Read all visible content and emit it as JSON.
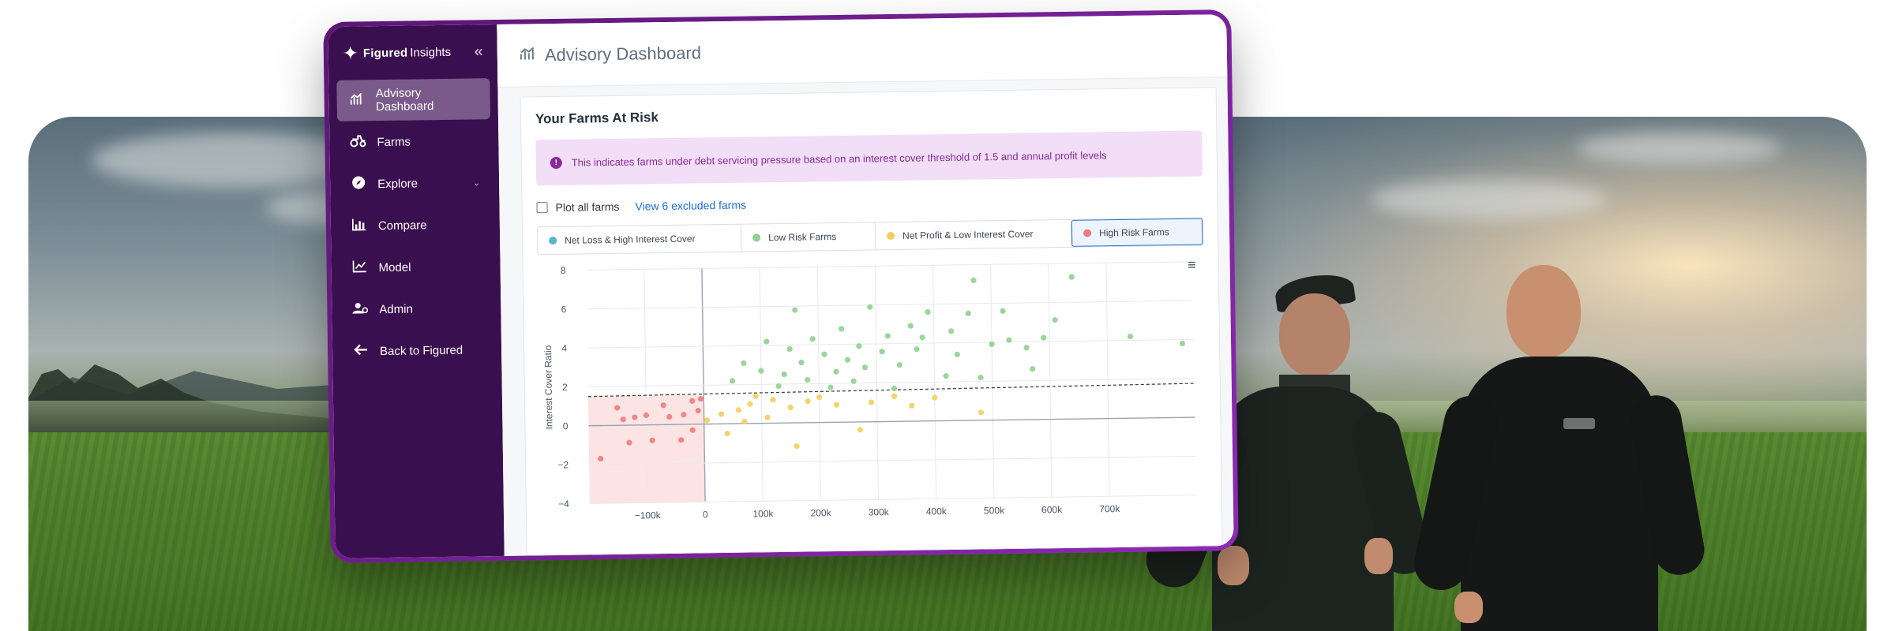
{
  "app": {
    "brand_name": "Figured",
    "brand_sub": "Insights",
    "colors": {
      "sidebar": "#3a0f4f",
      "accent": "#8d2ab3",
      "link": "#1f6fe0"
    }
  },
  "sidebar": {
    "collapse_icon": "double-chevron-left-icon",
    "items": [
      {
        "label": "Advisory Dashboard",
        "icon": "chart-icon",
        "active": true
      },
      {
        "label": "Farms",
        "icon": "tractor-icon"
      },
      {
        "label": "Explore",
        "icon": "compass-icon",
        "has_submenu": true
      },
      {
        "label": "Compare",
        "icon": "bar-chart-icon"
      },
      {
        "label": "Model",
        "icon": "line-chart-icon"
      },
      {
        "label": "Admin",
        "icon": "user-gear-icon"
      },
      {
        "label": "Back to Figured",
        "icon": "arrow-left-icon"
      }
    ]
  },
  "header": {
    "title": "Advisory Dashboard"
  },
  "panel": {
    "title": "Your Farms At Risk",
    "alert_text": "This indicates farms under debt servicing pressure based on an interest cover threshold of 1.5 and annual profit levels",
    "plot_all_label": "Plot all farms",
    "excluded_link": "View 6 excluded farms",
    "legend": [
      {
        "label": "Net Loss & High Interest Cover",
        "color": "#58b4d1"
      },
      {
        "label": "Low Risk Farms",
        "color": "#8fd18f"
      },
      {
        "label": "Net Profit & Low Interest Cover",
        "color": "#f3cf5a"
      },
      {
        "label": "High Risk Farms",
        "color": "#f07b7b",
        "selected": true
      }
    ]
  },
  "chart_data": {
    "type": "scatter",
    "xlabel": "",
    "ylabel": "Interest Cover Ratio",
    "xlim": [
      -200000,
      850000
    ],
    "ylim": [
      -4,
      8
    ],
    "threshold": 1.5,
    "x_ticks": [
      -100000,
      0,
      100000,
      200000,
      300000,
      400000,
      500000,
      600000,
      700000
    ],
    "x_tick_labels": [
      "−100k",
      "0",
      "100k",
      "200k",
      "300k",
      "400k",
      "500k",
      "600k",
      "700k"
    ],
    "y_ticks": [
      -4,
      -2,
      0,
      2,
      4,
      6,
      8
    ],
    "y_tick_labels": [
      "−4",
      "−2",
      "0",
      "2",
      "4",
      "6",
      "8"
    ],
    "series": [
      {
        "name": "High Risk Farms",
        "color": "#f07b7b",
        "points": [
          [
            -180000,
            -1.7
          ],
          [
            -150000,
            0.9
          ],
          [
            -140000,
            0.3
          ],
          [
            -130000,
            -0.9
          ],
          [
            -120000,
            0.4
          ],
          [
            -100000,
            0.5
          ],
          [
            -90000,
            -0.8
          ],
          [
            -70000,
            1.0
          ],
          [
            -60000,
            0.4
          ],
          [
            -40000,
            -0.8
          ],
          [
            -35000,
            0.5
          ],
          [
            -20000,
            1.2
          ],
          [
            -10000,
            0.7
          ],
          [
            -5000,
            1.3
          ],
          [
            -20000,
            -0.3
          ]
        ]
      },
      {
        "name": "Net Profit & Low Interest Cover",
        "color": "#f3cf5a",
        "points": [
          [
            5000,
            0.2
          ],
          [
            30000,
            0.5
          ],
          [
            40000,
            -0.5
          ],
          [
            60000,
            0.7
          ],
          [
            70000,
            0.1
          ],
          [
            80000,
            1.0
          ],
          [
            90000,
            1.4
          ],
          [
            110000,
            0.3
          ],
          [
            120000,
            1.2
          ],
          [
            150000,
            0.8
          ],
          [
            160000,
            -1.2
          ],
          [
            180000,
            1.1
          ],
          [
            200000,
            1.3
          ],
          [
            230000,
            0.9
          ],
          [
            270000,
            -0.4
          ],
          [
            290000,
            1.0
          ],
          [
            330000,
            1.3
          ],
          [
            360000,
            0.8
          ],
          [
            400000,
            1.2
          ],
          [
            480000,
            0.4
          ]
        ]
      },
      {
        "name": "Low Risk Farms",
        "color": "#8fd18f",
        "points": [
          [
            50000,
            2.2
          ],
          [
            70000,
            3.1
          ],
          [
            100000,
            2.7
          ],
          [
            110000,
            4.2
          ],
          [
            130000,
            1.9
          ],
          [
            140000,
            2.5
          ],
          [
            150000,
            3.8
          ],
          [
            160000,
            5.8
          ],
          [
            170000,
            3.1
          ],
          [
            180000,
            2.2
          ],
          [
            190000,
            4.3
          ],
          [
            210000,
            3.5
          ],
          [
            220000,
            1.8
          ],
          [
            230000,
            2.6
          ],
          [
            240000,
            4.8
          ],
          [
            250000,
            3.2
          ],
          [
            260000,
            2.1
          ],
          [
            270000,
            3.9
          ],
          [
            280000,
            2.8
          ],
          [
            290000,
            5.9
          ],
          [
            310000,
            3.6
          ],
          [
            320000,
            4.4
          ],
          [
            330000,
            1.7
          ],
          [
            340000,
            2.9
          ],
          [
            360000,
            4.9
          ],
          [
            370000,
            3.7
          ],
          [
            380000,
            4.3
          ],
          [
            390000,
            5.6
          ],
          [
            420000,
            2.3
          ],
          [
            430000,
            4.6
          ],
          [
            440000,
            3.4
          ],
          [
            460000,
            5.5
          ],
          [
            470000,
            7.2
          ],
          [
            480000,
            2.2
          ],
          [
            500000,
            3.9
          ],
          [
            520000,
            5.6
          ],
          [
            530000,
            4.1
          ],
          [
            560000,
            3.7
          ],
          [
            570000,
            2.6
          ],
          [
            590000,
            4.2
          ],
          [
            610000,
            5.1
          ],
          [
            640000,
            7.3
          ],
          [
            740000,
            4.2
          ],
          [
            830000,
            3.8
          ]
        ]
      }
    ]
  }
}
